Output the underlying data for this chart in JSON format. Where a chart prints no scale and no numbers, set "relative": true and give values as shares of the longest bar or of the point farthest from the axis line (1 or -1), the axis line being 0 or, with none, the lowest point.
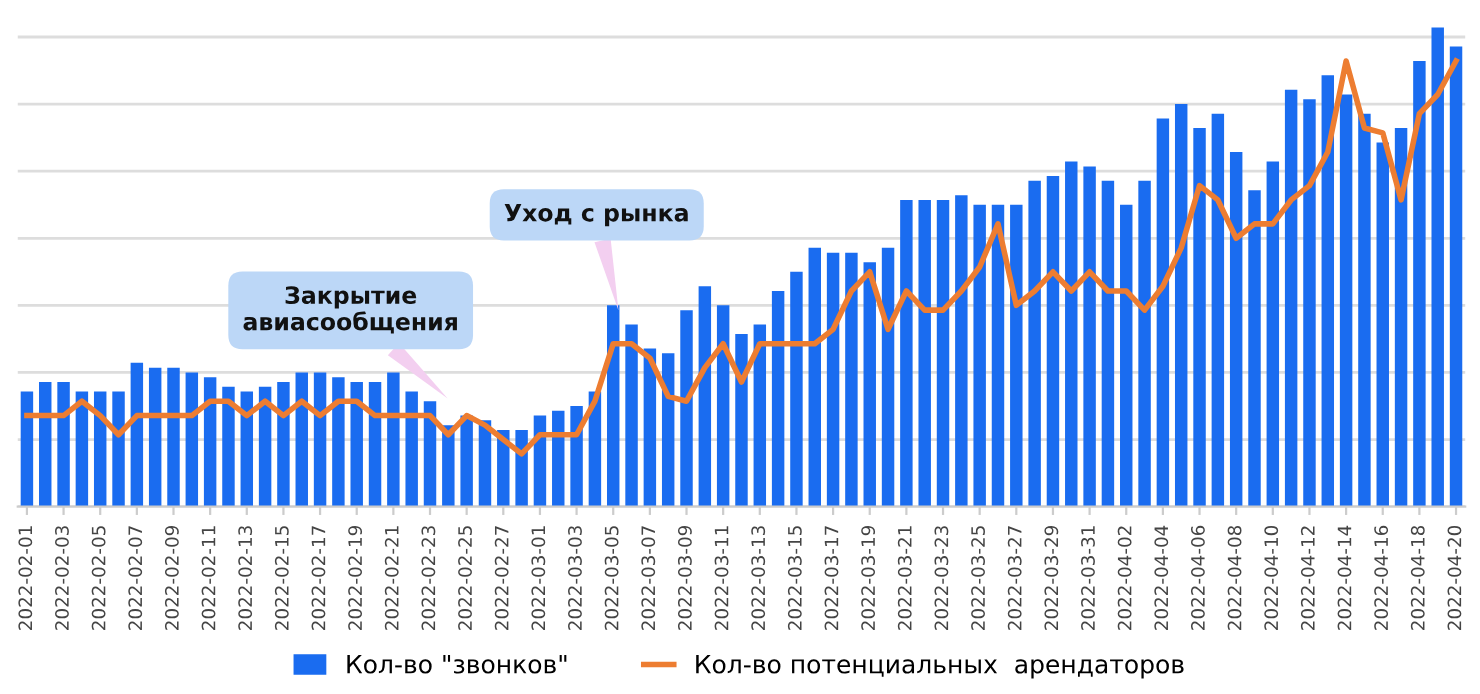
{
  "chart_data": {
    "type": "bar",
    "relative": true,
    "grid": "y",
    "tick_labels": "x",
    "legend": "bottom",
    "x": [
      "2022-02-01",
      "2022-02-02",
      "2022-02-03",
      "2022-02-04",
      "2022-02-05",
      "2022-02-06",
      "2022-02-07",
      "2022-02-08",
      "2022-02-09",
      "2022-02-10",
      "2022-02-11",
      "2022-02-12",
      "2022-02-13",
      "2022-02-14",
      "2022-02-15",
      "2022-02-16",
      "2022-02-17",
      "2022-02-18",
      "2022-02-19",
      "2022-02-20",
      "2022-02-21",
      "2022-02-22",
      "2022-02-23",
      "2022-02-24",
      "2022-02-25",
      "2022-02-26",
      "2022-02-27",
      "2022-02-28",
      "2022-03-01",
      "2022-03-02",
      "2022-03-03",
      "2022-03-04",
      "2022-03-05",
      "2022-03-06",
      "2022-03-07",
      "2022-03-08",
      "2022-03-09",
      "2022-03-10",
      "2022-03-11",
      "2022-03-12",
      "2022-03-13",
      "2022-03-14",
      "2022-03-15",
      "2022-03-16",
      "2022-03-17",
      "2022-03-18",
      "2022-03-19",
      "2022-03-20",
      "2022-03-21",
      "2022-03-22",
      "2022-03-23",
      "2022-03-24",
      "2022-03-25",
      "2022-03-26",
      "2022-03-27",
      "2022-03-28",
      "2022-03-29",
      "2022-03-30",
      "2022-03-31",
      "2022-04-01",
      "2022-04-02",
      "2022-04-03",
      "2022-04-04",
      "2022-04-05",
      "2022-04-06",
      "2022-04-07",
      "2022-04-08",
      "2022-04-09",
      "2022-04-10",
      "2022-04-11",
      "2022-04-12",
      "2022-04-13",
      "2022-04-14",
      "2022-04-15",
      "2022-04-16",
      "2022-04-17",
      "2022-04-18",
      "2022-04-19",
      "2022-04-20"
    ],
    "xlim": [
      "2022-01-31T12:00",
      "2022-04-20T12:00"
    ],
    "xticks": [
      "2022-02-01",
      "2022-02-03",
      "2022-02-05",
      "2022-02-07",
      "2022-02-09",
      "2022-02-11",
      "2022-02-13",
      "2022-02-15",
      "2022-02-17",
      "2022-02-19",
      "2022-02-21",
      "2022-02-23",
      "2022-02-25",
      "2022-02-27",
      "2022-03-01",
      "2022-03-03",
      "2022-03-05",
      "2022-03-07",
      "2022-03-09",
      "2022-03-11",
      "2022-03-13",
      "2022-03-15",
      "2022-03-17",
      "2022-03-19",
      "2022-03-21",
      "2022-03-23",
      "2022-03-25",
      "2022-03-27",
      "2022-03-29",
      "2022-03-31",
      "2022-04-02",
      "2022-04-04",
      "2022-04-06",
      "2022-04-08",
      "2022-04-10",
      "2022-04-12",
      "2022-04-14",
      "2022-04-16",
      "2022-04-18",
      "2022-04-20"
    ],
    "series": [
      {
        "name": "Кол-во \"звонков\"",
        "color": "#1a6cf0",
        "values": [
          0.24,
          0.26,
          0.26,
          0.24,
          0.24,
          0.24,
          0.3,
          0.29,
          0.29,
          0.28,
          0.27,
          0.25,
          0.24,
          0.25,
          0.26,
          0.28,
          0.28,
          0.27,
          0.26,
          0.26,
          0.28,
          0.24,
          0.22,
          0.17,
          0.19,
          0.18,
          0.16,
          0.16,
          0.19,
          0.2,
          0.21,
          0.24,
          0.42,
          0.38,
          0.33,
          0.32,
          0.41,
          0.46,
          0.42,
          0.36,
          0.38,
          0.45,
          0.49,
          0.54,
          0.53,
          0.53,
          0.51,
          0.54,
          0.64,
          0.64,
          0.64,
          0.65,
          0.63,
          0.63,
          0.63,
          0.68,
          0.69,
          0.72,
          0.71,
          0.68,
          0.63,
          0.68,
          0.81,
          0.84,
          0.79,
          0.82,
          0.74,
          0.66,
          0.72,
          0.87,
          0.85,
          0.9,
          0.86,
          0.82,
          0.76,
          0.79,
          0.93,
          1,
          0.96
        ]
      },
      {
        "name": "Кол-во потенциальных  арендаторов",
        "type": "line",
        "color": "#ed7d31",
        "values": [
          0.19,
          0.19,
          0.19,
          0.22,
          0.19,
          0.15,
          0.19,
          0.19,
          0.19,
          0.19,
          0.22,
          0.22,
          0.19,
          0.22,
          0.19,
          0.22,
          0.19,
          0.22,
          0.22,
          0.19,
          0.19,
          0.19,
          0.19,
          0.15,
          0.19,
          0.17,
          0.14,
          0.11,
          0.15,
          0.15,
          0.15,
          0.22,
          0.34,
          0.34,
          0.31,
          0.23,
          0.22,
          0.29,
          0.34,
          0.26,
          0.34,
          0.34,
          0.34,
          0.34,
          0.37,
          0.45,
          0.49,
          0.37,
          0.45,
          0.41,
          0.41,
          0.45,
          0.5,
          0.59,
          0.42,
          0.45,
          0.49,
          0.45,
          0.49,
          0.45,
          0.45,
          0.41,
          0.46,
          0.54,
          0.67,
          0.64,
          0.56,
          0.59,
          0.59,
          0.64,
          0.67,
          0.74,
          0.93,
          0.79,
          0.78,
          0.64,
          0.82,
          0.86,
          0.93
        ]
      }
    ],
    "annotations": [
      "Закрытие\nавиасообщения",
      "Уход с рынка"
    ]
  }
}
